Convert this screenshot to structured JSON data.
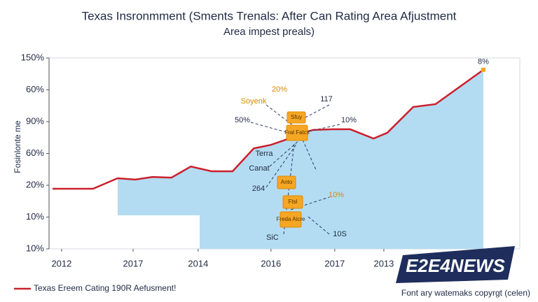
{
  "chart_data": {
    "type": "line",
    "title": "Texas Insronmment (Sments Trenals: After Can Rating Area Afjustment",
    "subtitle": "Area impest preals)",
    "y_label": "Fosinlonte me",
    "xlim": [
      0,
      100
    ],
    "xticks": [
      {
        "value": 2.1,
        "label": "2012"
      },
      {
        "value": 18.7,
        "label": "2017"
      },
      {
        "value": 33.8,
        "label": "2014"
      },
      {
        "value": 50.7,
        "label": "2016"
      },
      {
        "value": 65.5,
        "label": "2017"
      },
      {
        "value": 76.9,
        "label": "2013"
      }
    ],
    "ylim": [
      0,
      6
    ],
    "yticks": [
      {
        "value": 0,
        "label": "10%"
      },
      {
        "value": 1,
        "label": "10%"
      },
      {
        "value": 2,
        "label": "20%"
      },
      {
        "value": 3,
        "label": "60%"
      },
      {
        "value": 4,
        "label": "90%"
      },
      {
        "value": 5,
        "label": "60%"
      },
      {
        "value": 6,
        "label": "150%"
      }
    ],
    "series": [
      {
        "name": "Texas Ereem Cating 190R Aefusment!",
        "color": "#cc1f2d",
        "area_color": "#b3dcf2",
        "x": [
          0,
          9.4,
          15.1,
          19.2,
          23.2,
          27.6,
          32.1,
          36.9,
          41.8,
          46.7,
          50.7,
          54.1,
          56.9,
          60.5,
          65.0,
          69.1,
          74.5,
          77.7,
          83.7,
          88.9,
          100
        ],
        "values": [
          1.89,
          1.89,
          2.22,
          2.18,
          2.26,
          2.24,
          2.59,
          2.44,
          2.44,
          3.16,
          3.27,
          3.43,
          3.6,
          3.74,
          3.76,
          3.76,
          3.47,
          3.65,
          4.46,
          4.55,
          5.63
        ]
      }
    ],
    "end_label": "8%",
    "annotations": [
      "Soyenk",
      "20%",
      "117",
      "50%",
      "10%",
      "Terra",
      "Canat",
      "264",
      "10%",
      "10S",
      "SiC"
    ],
    "boxes": [
      "Sfuy",
      "Fral Fatcs",
      "Anto",
      "Ftsl",
      "Freda Aicre"
    ],
    "footer_note": "Font ary watemaks copyrgt (celen)",
    "watermark": "E2E4NEWS"
  }
}
